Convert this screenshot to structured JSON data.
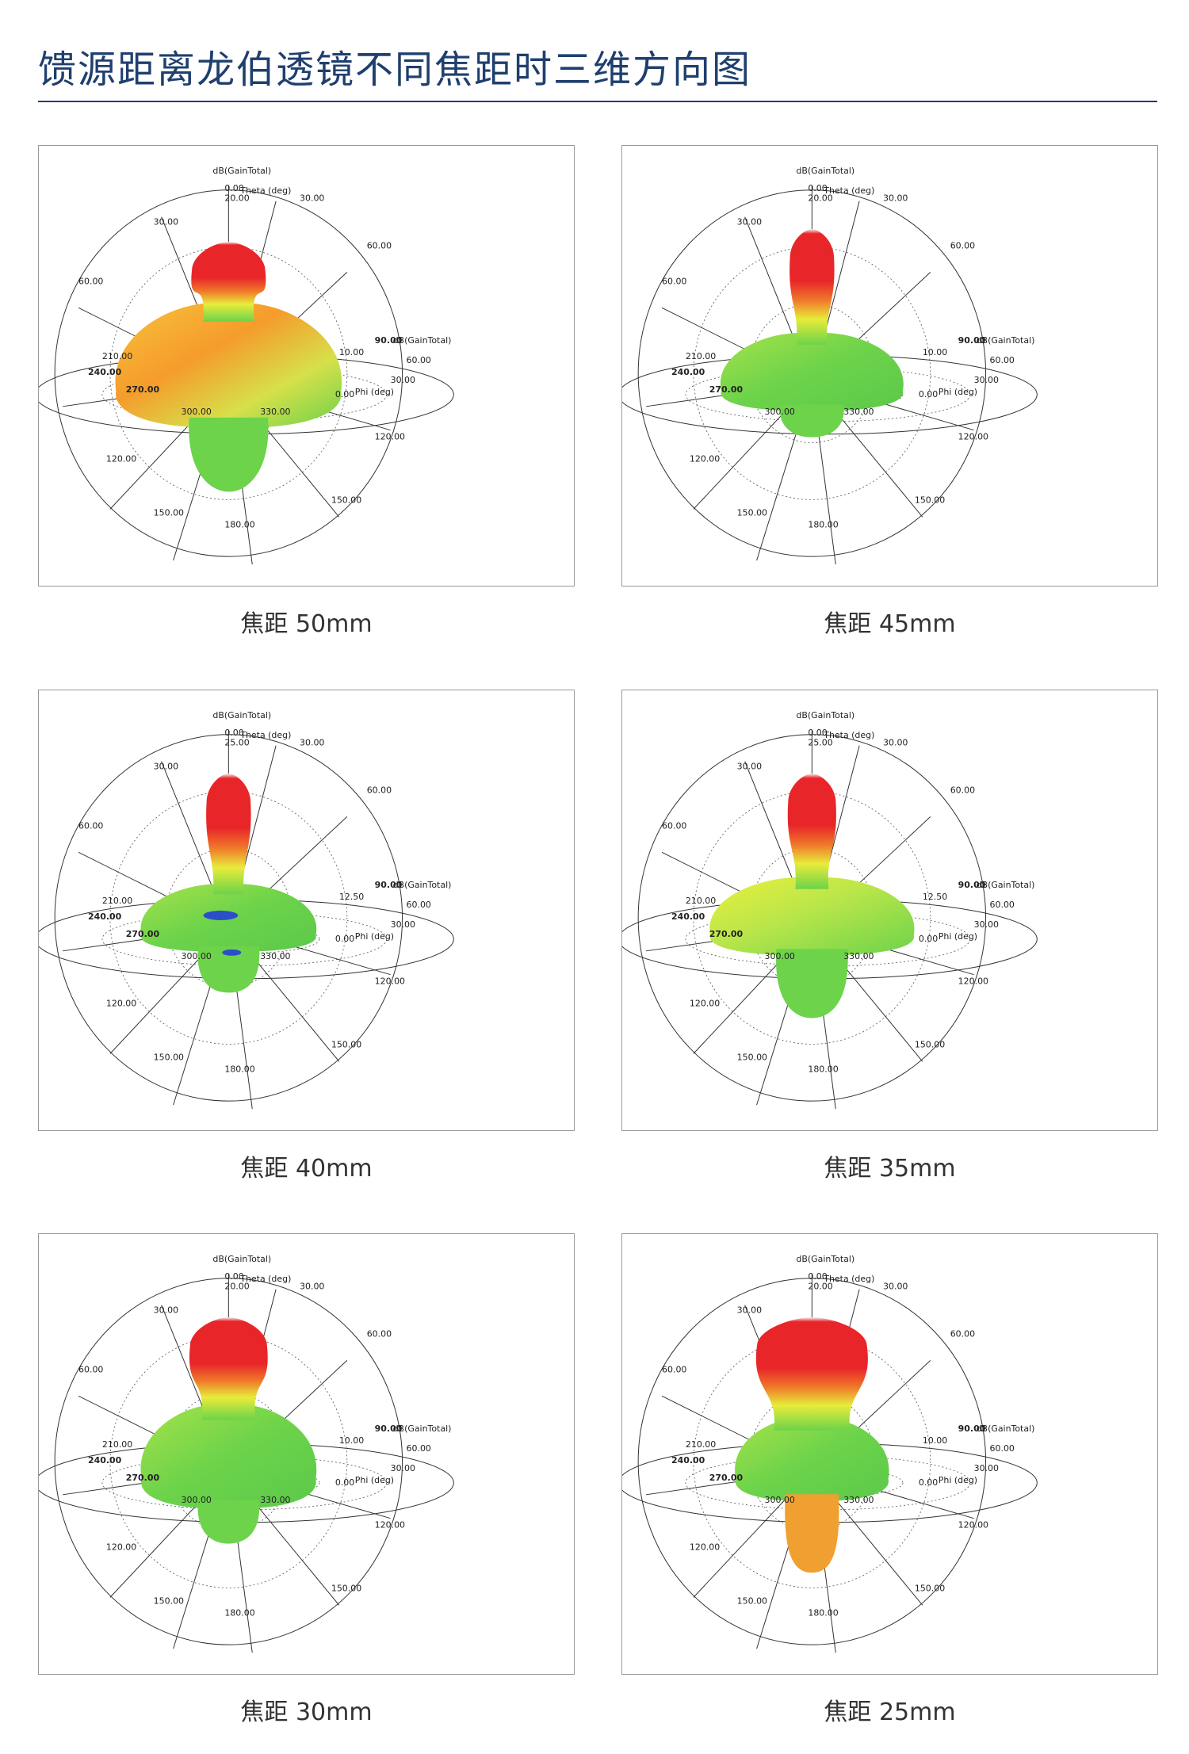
{
  "page": {
    "title": "馈源距离龙伯透镜不同焦距时三维方向图"
  },
  "plot_labels": {
    "quantity": "dB(GainTotal)",
    "theta_axis": "Theta (deg)",
    "phi_axis": "Phi (deg)",
    "theta_ticks": [
      "0.00",
      "30.00",
      "60.00",
      "120.00",
      "150.00",
      "180.00"
    ],
    "phi_ticks": [
      "210.00",
      "240.00",
      "270.00",
      "300.00",
      "330.00",
      "30.00",
      "60.00",
      "90.00"
    ]
  },
  "colors": {
    "title": "#1f3f6e",
    "peak": "#e8262a",
    "high": "#f5a623",
    "mid": "#e8ec3a",
    "low": "#6cd34a",
    "null": "#2a4fc8"
  },
  "figures": [
    {
      "caption": "焦距 50mm",
      "radial_max": "20.00",
      "radial_mid": "10.00"
    },
    {
      "caption": "焦距 45mm",
      "radial_max": "20.00",
      "radial_mid": "10.00"
    },
    {
      "caption": "焦距 40mm",
      "radial_max": "25.00",
      "radial_mid": "12.50"
    },
    {
      "caption": "焦距 35mm",
      "radial_max": "25.00",
      "radial_mid": "12.50"
    },
    {
      "caption": "焦距 30mm",
      "radial_max": "20.00",
      "radial_mid": "10.00"
    },
    {
      "caption": "焦距 25mm",
      "radial_max": "20.00",
      "radial_mid": "10.00"
    }
  ]
}
